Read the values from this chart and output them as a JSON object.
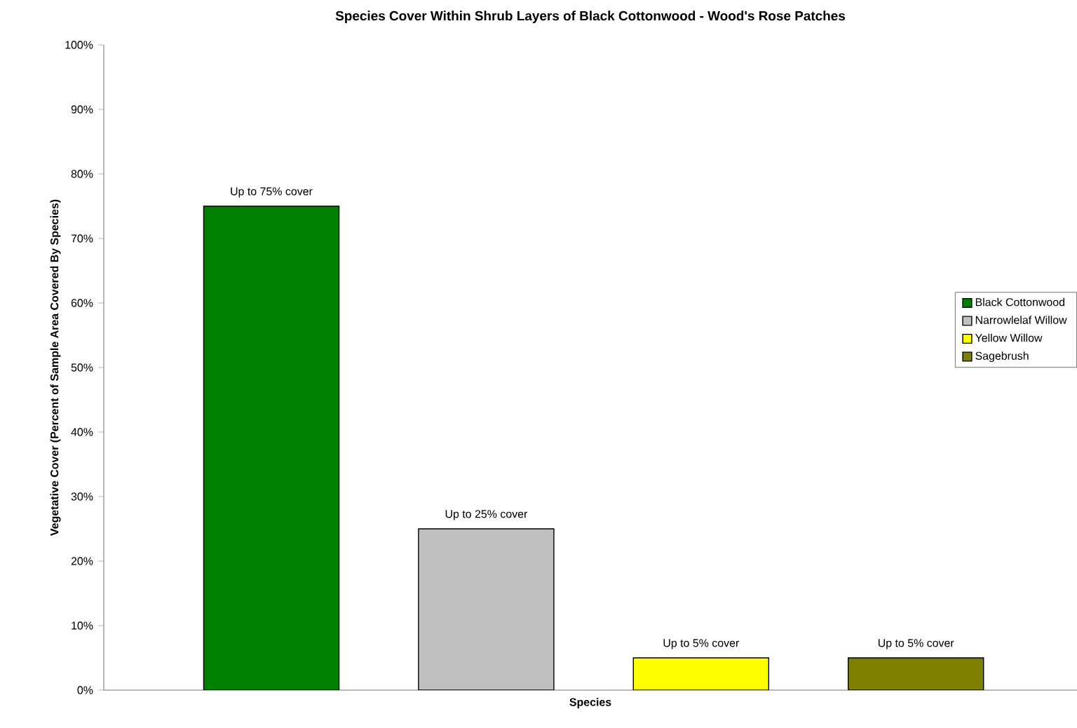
{
  "chart_data": {
    "type": "bar",
    "title": "Species Cover Within Shrub Layers of Black Cottonwood - Wood's  Rose Patches",
    "xlabel": "Species",
    "ylabel": "Vegetative Cover (Percent of Sample Area Covered By Species)",
    "categories": [
      null,
      null,
      null,
      null
    ],
    "series": [
      {
        "name": "Black Cottonwood",
        "color": "#008000",
        "values": [
          75,
          null,
          null,
          null
        ],
        "value_labels": [
          "Up to 75% cover",
          null,
          null,
          null
        ]
      },
      {
        "name": "Narrowlelaf Willow",
        "color": "#c0c0c0",
        "values": [
          null,
          25,
          null,
          null
        ],
        "value_labels": [
          null,
          "Up to 25% cover",
          null,
          null
        ]
      },
      {
        "name": "Yellow Willow",
        "color": "#ffff00",
        "values": [
          null,
          null,
          5,
          null
        ],
        "value_labels": [
          null,
          null,
          "Up to 5% cover",
          null
        ]
      },
      {
        "name": "Sagebrush",
        "color": "#808000",
        "values": [
          null,
          null,
          null,
          5
        ],
        "value_labels": [
          null,
          null,
          null,
          "Up to 5% cover"
        ]
      }
    ],
    "ylim": [
      0,
      100
    ],
    "yticks": [
      {
        "value": 0,
        "label": "0%"
      },
      {
        "value": 10,
        "label": "10%"
      },
      {
        "value": 20,
        "label": "20%"
      },
      {
        "value": 30,
        "label": "30%"
      },
      {
        "value": 40,
        "label": "40%"
      },
      {
        "value": 50,
        "label": "50%"
      },
      {
        "value": 60,
        "label": "60%"
      },
      {
        "value": 70,
        "label": "70%"
      },
      {
        "value": 80,
        "label": "80%"
      },
      {
        "value": 90,
        "label": "90%"
      },
      {
        "value": 100,
        "label": "100%"
      }
    ],
    "legend": "right"
  }
}
